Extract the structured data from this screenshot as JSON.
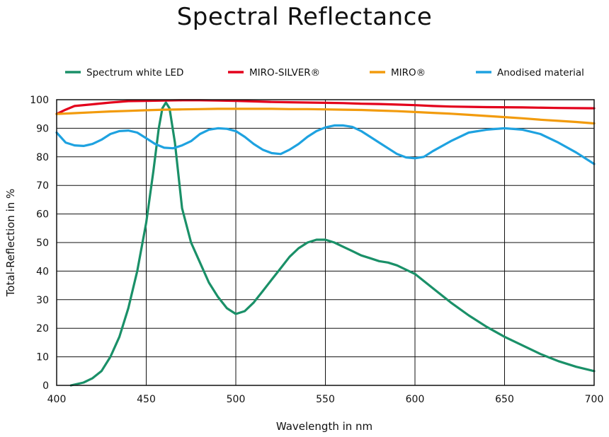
{
  "chart_data": {
    "type": "line",
    "title": "Spectral Reflectance",
    "xlabel": "Wavelength in nm",
    "ylabel": "Total-Reflection in %",
    "xlim": [
      400,
      700
    ],
    "ylim": [
      0,
      100
    ],
    "xticks": [
      400,
      450,
      500,
      550,
      600,
      650,
      700
    ],
    "yticks": [
      0,
      10,
      20,
      30,
      40,
      50,
      60,
      70,
      80,
      90,
      100
    ],
    "grid": true,
    "legend_position": "top",
    "series": [
      {
        "name": "Spectrum white LED",
        "color": "#1a9068",
        "points": [
          [
            408,
            0
          ],
          [
            415,
            1
          ],
          [
            420,
            2.5
          ],
          [
            425,
            5
          ],
          [
            430,
            10
          ],
          [
            435,
            17
          ],
          [
            440,
            27
          ],
          [
            445,
            40
          ],
          [
            450,
            57
          ],
          [
            454,
            75
          ],
          [
            457,
            90
          ],
          [
            459,
            97
          ],
          [
            461,
            99
          ],
          [
            463,
            97
          ],
          [
            466,
            85
          ],
          [
            470,
            62
          ],
          [
            475,
            50
          ],
          [
            480,
            43
          ],
          [
            485,
            36
          ],
          [
            490,
            31
          ],
          [
            495,
            27
          ],
          [
            500,
            25
          ],
          [
            505,
            26
          ],
          [
            510,
            29
          ],
          [
            515,
            33
          ],
          [
            520,
            37
          ],
          [
            525,
            41
          ],
          [
            530,
            45
          ],
          [
            535,
            48
          ],
          [
            540,
            50
          ],
          [
            545,
            51
          ],
          [
            550,
            51
          ],
          [
            555,
            50
          ],
          [
            560,
            48.5
          ],
          [
            565,
            47
          ],
          [
            570,
            45.5
          ],
          [
            575,
            44.5
          ],
          [
            580,
            43.5
          ],
          [
            585,
            43
          ],
          [
            590,
            42
          ],
          [
            595,
            40.5
          ],
          [
            600,
            39
          ],
          [
            610,
            34
          ],
          [
            620,
            29
          ],
          [
            630,
            24.5
          ],
          [
            640,
            20.5
          ],
          [
            650,
            17
          ],
          [
            660,
            14
          ],
          [
            670,
            11
          ],
          [
            680,
            8.5
          ],
          [
            690,
            6.5
          ],
          [
            700,
            5
          ]
        ]
      },
      {
        "name": "MIRO-SILVER®",
        "color": "#e3001b",
        "points": [
          [
            400,
            95
          ],
          [
            405,
            96.5
          ],
          [
            410,
            97.8
          ],
          [
            420,
            98.4
          ],
          [
            430,
            99
          ],
          [
            440,
            99.5
          ],
          [
            450,
            99.6
          ],
          [
            460,
            99.7
          ],
          [
            470,
            99.8
          ],
          [
            480,
            99.8
          ],
          [
            490,
            99.7
          ],
          [
            500,
            99.6
          ],
          [
            510,
            99.4
          ],
          [
            520,
            99.2
          ],
          [
            530,
            99.1
          ],
          [
            540,
            99
          ],
          [
            550,
            98.9
          ],
          [
            560,
            98.8
          ],
          [
            570,
            98.6
          ],
          [
            580,
            98.5
          ],
          [
            590,
            98.3
          ],
          [
            600,
            98.1
          ],
          [
            610,
            97.8
          ],
          [
            620,
            97.6
          ],
          [
            640,
            97.4
          ],
          [
            660,
            97.3
          ],
          [
            680,
            97.1
          ],
          [
            700,
            97
          ]
        ]
      },
      {
        "name": "MIRO®",
        "color": "#f29b0d",
        "points": [
          [
            400,
            95
          ],
          [
            410,
            95.3
          ],
          [
            420,
            95.6
          ],
          [
            430,
            95.9
          ],
          [
            440,
            96.1
          ],
          [
            450,
            96.3
          ],
          [
            460,
            96.5
          ],
          [
            470,
            96.6
          ],
          [
            480,
            96.7
          ],
          [
            490,
            96.8
          ],
          [
            500,
            96.8
          ],
          [
            510,
            96.8
          ],
          [
            520,
            96.8
          ],
          [
            530,
            96.7
          ],
          [
            540,
            96.7
          ],
          [
            550,
            96.6
          ],
          [
            560,
            96.5
          ],
          [
            570,
            96.4
          ],
          [
            580,
            96.2
          ],
          [
            590,
            96
          ],
          [
            600,
            95.7
          ],
          [
            610,
            95.4
          ],
          [
            620,
            95.1
          ],
          [
            630,
            94.7
          ],
          [
            640,
            94.3
          ],
          [
            650,
            93.9
          ],
          [
            660,
            93.5
          ],
          [
            670,
            93
          ],
          [
            680,
            92.6
          ],
          [
            690,
            92.2
          ],
          [
            700,
            91.7
          ]
        ]
      },
      {
        "name": "Anodised material",
        "color": "#1ea2e0",
        "points": [
          [
            400,
            88.5
          ],
          [
            405,
            85
          ],
          [
            410,
            84
          ],
          [
            415,
            83.8
          ],
          [
            420,
            84.5
          ],
          [
            425,
            86
          ],
          [
            430,
            88
          ],
          [
            435,
            89
          ],
          [
            440,
            89.2
          ],
          [
            445,
            88.5
          ],
          [
            450,
            86.5
          ],
          [
            455,
            84.5
          ],
          [
            460,
            83.2
          ],
          [
            465,
            83
          ],
          [
            470,
            84
          ],
          [
            475,
            85.5
          ],
          [
            480,
            88
          ],
          [
            485,
            89.5
          ],
          [
            490,
            90
          ],
          [
            495,
            89.8
          ],
          [
            500,
            89
          ],
          [
            505,
            87
          ],
          [
            510,
            84.5
          ],
          [
            515,
            82.5
          ],
          [
            520,
            81.3
          ],
          [
            525,
            81
          ],
          [
            530,
            82.5
          ],
          [
            535,
            84.5
          ],
          [
            540,
            87
          ],
          [
            545,
            89
          ],
          [
            550,
            90.3
          ],
          [
            555,
            91
          ],
          [
            560,
            91
          ],
          [
            565,
            90.5
          ],
          [
            570,
            89
          ],
          [
            575,
            87
          ],
          [
            580,
            85
          ],
          [
            585,
            83
          ],
          [
            590,
            81
          ],
          [
            595,
            79.8
          ],
          [
            600,
            79.5
          ],
          [
            605,
            80
          ],
          [
            610,
            82
          ],
          [
            620,
            85.5
          ],
          [
            630,
            88.5
          ],
          [
            640,
            89.5
          ],
          [
            650,
            90
          ],
          [
            660,
            89.5
          ],
          [
            670,
            88
          ],
          [
            680,
            85
          ],
          [
            690,
            81.5
          ],
          [
            700,
            77.5
          ]
        ]
      }
    ]
  }
}
